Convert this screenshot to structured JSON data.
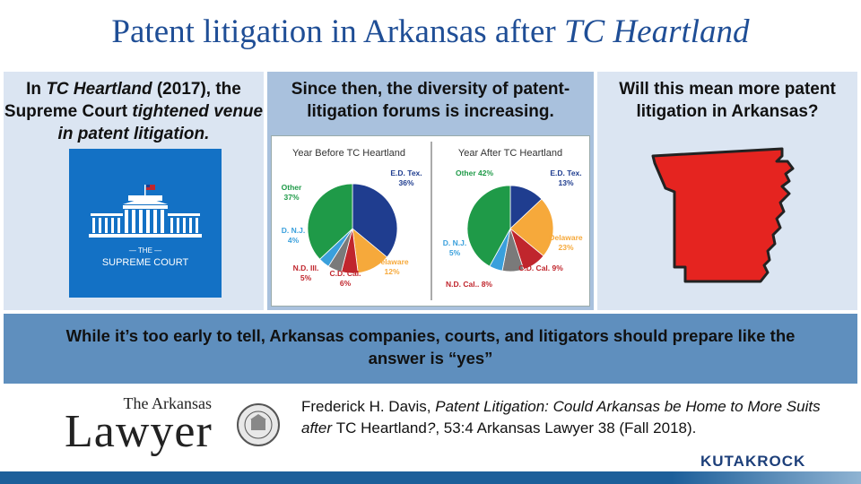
{
  "title": {
    "main": "Patent litigation in Arkansas after ",
    "italic": "TC Heartland"
  },
  "left_panel": {
    "part1": "In ",
    "case": "TC Heartland",
    "part2": " (2017), the Supreme Court ",
    "emph": "tightened venue in patent litigation.",
    "logo_label": "— THE —",
    "logo_name": "SUPREME COURT",
    "logo_color": "#1371c5"
  },
  "mid_panel": {
    "text": "Since then, the diversity of patent-litigation forums is increasing."
  },
  "right_panel": {
    "text": "Will this mean more patent litigation in Arkansas?",
    "map_color": "#e52420",
    "map_icon": "arkansas-state-map-icon"
  },
  "bottom_text": "While it’s too early to tell, Arkansas companies, courts, and litigators should prepare like the answer is “yes”",
  "citation": {
    "author": "Frederick H. Davis, ",
    "title_italic": "Patent Litigation: Could Arkansas be Home to More Suits after ",
    "title_case": "TC Heartland",
    "q": "?",
    "rest": ", 53:4 Arkansas Lawyer 38 (Fall 2018)."
  },
  "logo": {
    "the_arkansas": "The Arkansas",
    "lawyer": "Lawyer",
    "seal_icon": "arkansas-bar-association-seal-icon"
  },
  "brand": "KUTAKROCK",
  "chart_data": [
    {
      "type": "pie",
      "title": "Year Before TC Heartland",
      "slices": [
        {
          "label": "E.D. Tex.",
          "value": 36,
          "value_label": "36%",
          "color": "#1f3d8f"
        },
        {
          "label": "Delaware",
          "value": 12,
          "value_label": "12%",
          "color": "#f6a93b"
        },
        {
          "label": "C.D. Cal.",
          "value": 6,
          "value_label": "6%",
          "color": "#c0262d"
        },
        {
          "label": "N.D. Ill.",
          "value": 5,
          "value_label": "5%",
          "color": "#7a7a7a"
        },
        {
          "label": "D. N.J.",
          "value": 4,
          "value_label": "4%",
          "color": "#3aa0dc"
        },
        {
          "label": "Other",
          "value": 37,
          "value_label": "37%",
          "color": "#1f9a48"
        }
      ]
    },
    {
      "type": "pie",
      "title": "Year After TC Heartland",
      "slices": [
        {
          "label": "E.D. Tex.",
          "value": 13,
          "value_label": "13%",
          "color": "#1f3d8f"
        },
        {
          "label": "Delaware",
          "value": 23,
          "value_label": "23%",
          "color": "#f6a93b"
        },
        {
          "label": "C.D. Cal.",
          "value": 9,
          "value_label": "9%",
          "color": "#c0262d"
        },
        {
          "label": "N.D. Cal.",
          "value": 8,
          "value_label": "8%",
          "color": "#7a7a7a"
        },
        {
          "label": "D. N.J.",
          "value": 5,
          "value_label": "5%",
          "color": "#3aa0dc"
        },
        {
          "label": "Other",
          "value": 42,
          "value_label": "42%",
          "color": "#1f9a48"
        }
      ]
    }
  ]
}
